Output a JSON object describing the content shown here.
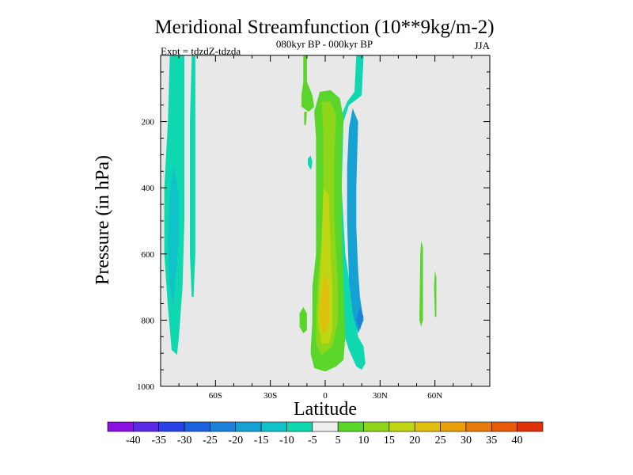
{
  "chart_data": {
    "type": "heatmap",
    "title": "Meridional Streamfunction (10**9kg/m-2)",
    "subtitle": "080kyr BP - 000kyr BP",
    "left_label": "Expt = tdzdZ-tdzda",
    "right_label": "JJA",
    "xlabel": "Latitude",
    "ylabel": "Pressure (in hPa)",
    "xlim": [
      -90,
      90
    ],
    "ylim": [
      0,
      1000
    ],
    "y_inverted": true,
    "x_ticks": [
      {
        "value": -60,
        "label": "60S"
      },
      {
        "value": -30,
        "label": "30S"
      },
      {
        "value": 0,
        "label": "0"
      },
      {
        "value": 30,
        "label": "30N"
      },
      {
        "value": 60,
        "label": "60N"
      }
    ],
    "y_ticks": [
      {
        "value": 200,
        "label": "200"
      },
      {
        "value": 400,
        "label": "400"
      },
      {
        "value": 600,
        "label": "600"
      },
      {
        "value": 800,
        "label": "800"
      },
      {
        "value": 1000,
        "label": "1000"
      }
    ],
    "background_color": "#e8e8e8",
    "colorbar": {
      "levels": [
        "-40",
        "-35",
        "-30",
        "-25",
        "-20",
        "-15",
        "-10",
        "-5",
        "5",
        "10",
        "15",
        "20",
        "25",
        "30",
        "35",
        "40"
      ],
      "colors": [
        "#8a0fe0",
        "#5a28e6",
        "#2a42e8",
        "#1c62e0",
        "#1b82d8",
        "#15a2d2",
        "#10c2ca",
        "#0fd8b0",
        "#eeeeee",
        "#5ad62a",
        "#8ed61a",
        "#c0d612",
        "#e0c00e",
        "#e8a00c",
        "#e87c0a",
        "#e85a08",
        "#e2300a"
      ]
    },
    "regions": [
      {
        "name": "sh-polar-cell",
        "color": "#0fd8b0",
        "points": [
          [
            -85,
            0
          ],
          [
            -77,
            0
          ],
          [
            -77,
            200
          ],
          [
            -77,
            500
          ],
          [
            -78,
            700
          ],
          [
            -80,
            850
          ],
          [
            -81,
            905
          ],
          [
            -84,
            890
          ],
          [
            -86,
            760
          ],
          [
            -88,
            600
          ],
          [
            -88,
            400
          ],
          [
            -86,
            200
          ],
          [
            -85,
            0
          ]
        ]
      },
      {
        "name": "sh-polar-core",
        "color": "#10c2ca",
        "points": [
          [
            -83,
            330
          ],
          [
            -80,
            420
          ],
          [
            -80,
            560
          ],
          [
            -82,
            680
          ],
          [
            -83,
            760
          ],
          [
            -85,
            700
          ],
          [
            -86,
            560
          ],
          [
            -85,
            420
          ],
          [
            -83,
            330
          ]
        ]
      },
      {
        "name": "sh-thin-band",
        "color": "#0fd8b0",
        "points": [
          [
            -73,
            0
          ],
          [
            -71,
            0
          ],
          [
            -71,
            400
          ],
          [
            -71,
            600
          ],
          [
            -72,
            730
          ],
          [
            -73,
            730
          ],
          [
            -74,
            600
          ],
          [
            -74,
            200
          ],
          [
            -73,
            0
          ]
        ]
      },
      {
        "name": "eq-upper-patch",
        "color": "#5ad62a",
        "points": [
          [
            -12,
            0
          ],
          [
            -10,
            0
          ],
          [
            -10,
            80
          ],
          [
            -7,
            120
          ],
          [
            -6,
            155
          ],
          [
            -9,
            170
          ],
          [
            -13,
            155
          ],
          [
            -13,
            120
          ],
          [
            -12,
            80
          ],
          [
            -12,
            0
          ]
        ]
      },
      {
        "name": "eq-thread",
        "color": "#5ad62a",
        "points": [
          [
            -11.5,
            170
          ],
          [
            -10,
            170
          ],
          [
            -10.5,
            210
          ],
          [
            -11.5,
            210
          ],
          [
            -11.5,
            170
          ]
        ]
      },
      {
        "name": "eq-small-blob",
        "color": "#0fd8b0",
        "points": [
          [
            -8,
            303
          ],
          [
            -7,
            320
          ],
          [
            -7.5,
            340
          ],
          [
            -8,
            345
          ],
          [
            -9.5,
            330
          ],
          [
            -9.5,
            312
          ],
          [
            -8,
            303
          ]
        ]
      },
      {
        "name": "eq-lower-blob",
        "color": "#5ad62a",
        "points": [
          [
            -12,
            760
          ],
          [
            -10,
            780
          ],
          [
            -10,
            830
          ],
          [
            -12,
            840
          ],
          [
            -14,
            820
          ],
          [
            -14,
            780
          ],
          [
            -12,
            760
          ]
        ]
      },
      {
        "name": "nh-outer-cyan",
        "color": "#0fd8b0",
        "points": [
          [
            17,
            0
          ],
          [
            21,
            0
          ],
          [
            20,
            120
          ],
          [
            18,
            130
          ],
          [
            13,
            150
          ],
          [
            10,
            200
          ],
          [
            9,
            400
          ],
          [
            11,
            600
          ],
          [
            15,
            750
          ],
          [
            18,
            850
          ],
          [
            21,
            880
          ],
          [
            22,
            930
          ],
          [
            20,
            950
          ],
          [
            17,
            940
          ],
          [
            13,
            890
          ],
          [
            9,
            820
          ],
          [
            7,
            700
          ],
          [
            7,
            500
          ],
          [
            8,
            300
          ],
          [
            9,
            180
          ],
          [
            12,
            140
          ],
          [
            16,
            110
          ],
          [
            17,
            0
          ]
        ]
      },
      {
        "name": "nh-inner-blue",
        "color": "#15a2d2",
        "points": [
          [
            15,
            160
          ],
          [
            18,
            200
          ],
          [
            17,
            400
          ],
          [
            17,
            520
          ],
          [
            18,
            650
          ],
          [
            19,
            730
          ],
          [
            21,
            800
          ],
          [
            18,
            840
          ],
          [
            15,
            780
          ],
          [
            13,
            680
          ],
          [
            12,
            500
          ],
          [
            12,
            340
          ],
          [
            13,
            220
          ],
          [
            15,
            160
          ]
        ]
      },
      {
        "name": "nh-deep-blue",
        "color": "#1b82d8",
        "points": [
          [
            19,
            760
          ],
          [
            21,
            790
          ],
          [
            19,
            830
          ],
          [
            17,
            800
          ],
          [
            19,
            760
          ]
        ]
      },
      {
        "name": "eq-green-plume",
        "color": "#5ad62a",
        "points": [
          [
            -3,
            110
          ],
          [
            3,
            105
          ],
          [
            8,
            130
          ],
          [
            10,
            190
          ],
          [
            9,
            300
          ],
          [
            9,
            500
          ],
          [
            10,
            700
          ],
          [
            11,
            850
          ],
          [
            10,
            920
          ],
          [
            6,
            940
          ],
          [
            0,
            955
          ],
          [
            -6,
            945
          ],
          [
            -8,
            900
          ],
          [
            -7,
            800
          ],
          [
            -7,
            700
          ],
          [
            -5,
            600
          ],
          [
            -5,
            400
          ],
          [
            -5,
            250
          ],
          [
            -6,
            170
          ],
          [
            -3,
            110
          ]
        ]
      },
      {
        "name": "eq-yellowgreen",
        "color": "#8ed61a",
        "points": [
          [
            -2,
            140
          ],
          [
            3,
            140
          ],
          [
            6,
            180
          ],
          [
            5,
            300
          ],
          [
            5,
            500
          ],
          [
            7,
            700
          ],
          [
            7,
            800
          ],
          [
            4,
            880
          ],
          [
            -2,
            905
          ],
          [
            -5,
            870
          ],
          [
            -5,
            780
          ],
          [
            -4,
            680
          ],
          [
            -2,
            560
          ],
          [
            -1,
            400
          ],
          [
            -1,
            240
          ],
          [
            -2,
            140
          ]
        ]
      },
      {
        "name": "eq-yellow",
        "color": "#c0d612",
        "points": [
          [
            -1,
            400
          ],
          [
            2,
            420
          ],
          [
            3,
            600
          ],
          [
            4,
            700
          ],
          [
            4,
            830
          ],
          [
            2,
            870
          ],
          [
            -2,
            870
          ],
          [
            -4,
            800
          ],
          [
            -3,
            690
          ],
          [
            -2,
            580
          ],
          [
            -1,
            400
          ]
        ]
      },
      {
        "name": "eq-orange-core",
        "color": "#e0c00e",
        "points": [
          [
            0,
            660
          ],
          [
            2,
            700
          ],
          [
            2,
            800
          ],
          [
            0,
            840
          ],
          [
            -2,
            830
          ],
          [
            -3,
            780
          ],
          [
            -2,
            710
          ],
          [
            0,
            660
          ]
        ]
      },
      {
        "name": "nh-thin-1",
        "color": "#5ad62a",
        "points": [
          [
            52.5,
            560
          ],
          [
            53.5,
            580
          ],
          [
            53.5,
            800
          ],
          [
            52.5,
            820
          ],
          [
            51.5,
            800
          ],
          [
            52,
            600
          ],
          [
            52.5,
            560
          ]
        ]
      },
      {
        "name": "nh-thin-2",
        "color": "#5ad62a",
        "points": [
          [
            60,
            650
          ],
          [
            60.8,
            670
          ],
          [
            60.8,
            790
          ],
          [
            60,
            790
          ],
          [
            59.5,
            700
          ],
          [
            60,
            650
          ]
        ]
      }
    ]
  }
}
